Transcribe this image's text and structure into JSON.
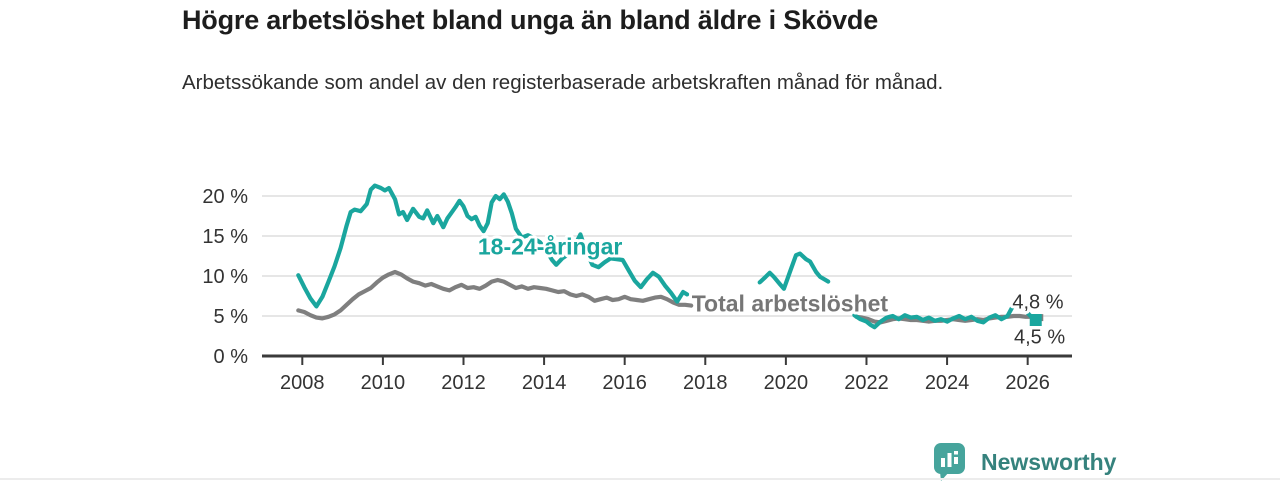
{
  "chart_data": {
    "type": "line",
    "title": "Högre arbetslöshet bland unga än bland äldre i Skövde",
    "subtitle": "Arbetssökande som andel av den registerbaserade arbetskraften månad för månad.",
    "unit": "%",
    "grid": "horizontal",
    "legend_position": "inline-labels",
    "x_range": [
      2007.0,
      2027.1
    ],
    "y_range": [
      0,
      22.5
    ],
    "x_ticks": [
      2008,
      2010,
      2012,
      2014,
      2016,
      2018,
      2020,
      2022,
      2024,
      2026
    ],
    "y_ticks": [
      {
        "value": 20,
        "label": "20 %"
      },
      {
        "value": 15,
        "label": "15 %"
      },
      {
        "value": 10,
        "label": "10 %"
      },
      {
        "value": 5,
        "label": "5 %"
      },
      {
        "value": 0,
        "label": "0 %"
      }
    ],
    "series": [
      {
        "name": "Total arbetslöshet",
        "color": "#7f7f7f",
        "last_value_label": "4,8 %",
        "last_value": 4.8,
        "end_marker": {
          "x": 2026.3,
          "y": 4.8,
          "size": 7
        },
        "segments": [
          [
            [
              2007.9,
              5.7
            ],
            [
              2008.05,
              5.5
            ],
            [
              2008.2,
              5.1
            ],
            [
              2008.35,
              4.8
            ],
            [
              2008.5,
              4.7
            ],
            [
              2008.65,
              4.9
            ],
            [
              2008.8,
              5.2
            ],
            [
              2008.95,
              5.7
            ],
            [
              2009.1,
              6.4
            ],
            [
              2009.25,
              7.1
            ],
            [
              2009.4,
              7.7
            ],
            [
              2009.55,
              8.1
            ],
            [
              2009.7,
              8.5
            ],
            [
              2009.85,
              9.2
            ],
            [
              2010.0,
              9.8
            ],
            [
              2010.15,
              10.2
            ],
            [
              2010.3,
              10.5
            ],
            [
              2010.45,
              10.2
            ],
            [
              2010.6,
              9.7
            ],
            [
              2010.75,
              9.3
            ],
            [
              2010.9,
              9.1
            ],
            [
              2011.05,
              8.8
            ],
            [
              2011.2,
              9.0
            ],
            [
              2011.35,
              8.7
            ],
            [
              2011.5,
              8.4
            ],
            [
              2011.65,
              8.2
            ],
            [
              2011.8,
              8.6
            ],
            [
              2011.95,
              8.9
            ],
            [
              2012.1,
              8.5
            ],
            [
              2012.25,
              8.6
            ],
            [
              2012.4,
              8.4
            ],
            [
              2012.55,
              8.8
            ],
            [
              2012.7,
              9.3
            ],
            [
              2012.85,
              9.5
            ],
            [
              2013.0,
              9.3
            ],
            [
              2013.15,
              8.9
            ],
            [
              2013.3,
              8.5
            ],
            [
              2013.45,
              8.7
            ],
            [
              2013.6,
              8.4
            ],
            [
              2013.75,
              8.6
            ],
            [
              2013.9,
              8.5
            ],
            [
              2014.05,
              8.4
            ],
            [
              2014.2,
              8.2
            ],
            [
              2014.35,
              8.0
            ],
            [
              2014.5,
              8.1
            ],
            [
              2014.65,
              7.7
            ],
            [
              2014.8,
              7.5
            ],
            [
              2014.95,
              7.7
            ],
            [
              2015.1,
              7.4
            ],
            [
              2015.25,
              6.9
            ],
            [
              2015.4,
              7.1
            ],
            [
              2015.55,
              7.3
            ],
            [
              2015.7,
              7.0
            ],
            [
              2015.85,
              7.1
            ],
            [
              2016.0,
              7.4
            ],
            [
              2016.15,
              7.1
            ],
            [
              2016.3,
              7.0
            ],
            [
              2016.45,
              6.9
            ],
            [
              2016.6,
              7.1
            ],
            [
              2016.75,
              7.3
            ],
            [
              2016.9,
              7.4
            ],
            [
              2017.05,
              7.1
            ],
            [
              2017.2,
              6.7
            ],
            [
              2017.35,
              6.4
            ],
            [
              2017.5,
              6.4
            ],
            [
              2017.65,
              6.3
            ]
          ],
          [
            [
              2021.75,
              4.9
            ],
            [
              2021.9,
              4.8
            ],
            [
              2022.05,
              4.6
            ],
            [
              2022.2,
              4.3
            ],
            [
              2022.35,
              4.2
            ],
            [
              2022.5,
              4.4
            ],
            [
              2022.65,
              4.6
            ],
            [
              2022.8,
              4.7
            ],
            [
              2022.95,
              4.6
            ],
            [
              2023.1,
              4.5
            ],
            [
              2023.25,
              4.5
            ],
            [
              2023.4,
              4.4
            ],
            [
              2023.55,
              4.3
            ],
            [
              2023.7,
              4.4
            ],
            [
              2023.85,
              4.4
            ],
            [
              2024.0,
              4.5
            ],
            [
              2024.15,
              4.6
            ],
            [
              2024.3,
              4.5
            ],
            [
              2024.45,
              4.4
            ],
            [
              2024.6,
              4.5
            ],
            [
              2024.75,
              4.6
            ],
            [
              2024.9,
              4.5
            ],
            [
              2025.05,
              4.7
            ],
            [
              2025.2,
              4.8
            ],
            [
              2025.35,
              4.9
            ],
            [
              2025.5,
              4.9
            ],
            [
              2025.65,
              5.0
            ],
            [
              2025.8,
              5.0
            ],
            [
              2025.95,
              4.9
            ],
            [
              2026.1,
              4.9
            ],
            [
              2026.3,
              4.8
            ]
          ]
        ]
      },
      {
        "name": "18-24-åringar",
        "color": "#1aa69e",
        "last_value_label": "4,5 %",
        "last_value": 4.5,
        "end_marker": {
          "x": 2026.2,
          "y": 4.5,
          "size": 12
        },
        "segments": [
          [
            [
              2007.9,
              10.1
            ],
            [
              2008.05,
              8.6
            ],
            [
              2008.2,
              7.2
            ],
            [
              2008.35,
              6.2
            ],
            [
              2008.5,
              7.4
            ],
            [
              2008.65,
              9.3
            ],
            [
              2008.8,
              11.2
            ],
            [
              2008.95,
              13.5
            ],
            [
              2009.1,
              16.3
            ],
            [
              2009.2,
              18.0
            ],
            [
              2009.3,
              18.3
            ],
            [
              2009.45,
              18.1
            ],
            [
              2009.6,
              19.0
            ],
            [
              2009.7,
              20.8
            ],
            [
              2009.8,
              21.3
            ],
            [
              2009.95,
              21.0
            ],
            [
              2010.05,
              20.7
            ],
            [
              2010.15,
              21.0
            ],
            [
              2010.3,
              19.6
            ],
            [
              2010.4,
              17.7
            ],
            [
              2010.5,
              18.0
            ],
            [
              2010.6,
              17.0
            ],
            [
              2010.75,
              18.4
            ],
            [
              2010.9,
              17.4
            ],
            [
              2011.0,
              17.2
            ],
            [
              2011.1,
              18.2
            ],
            [
              2011.25,
              16.6
            ],
            [
              2011.35,
              17.5
            ],
            [
              2011.5,
              16.1
            ],
            [
              2011.6,
              17.2
            ],
            [
              2011.7,
              17.9
            ],
            [
              2011.8,
              18.6
            ],
            [
              2011.9,
              19.4
            ],
            [
              2012.0,
              18.7
            ],
            [
              2012.1,
              17.5
            ],
            [
              2012.2,
              17.1
            ],
            [
              2012.3,
              17.4
            ],
            [
              2012.4,
              16.3
            ],
            [
              2012.5,
              15.6
            ],
            [
              2012.6,
              16.6
            ],
            [
              2012.7,
              19.2
            ],
            [
              2012.8,
              20.0
            ],
            [
              2012.9,
              19.6
            ],
            [
              2013.0,
              20.2
            ],
            [
              2013.1,
              19.3
            ],
            [
              2013.2,
              17.8
            ],
            [
              2013.3,
              15.9
            ],
            [
              2013.45,
              14.8
            ],
            [
              2013.6,
              15.1
            ],
            [
              2013.75,
              14.7
            ],
            [
              2013.9,
              14.2
            ],
            [
              2014.05,
              13.2
            ],
            [
              2014.2,
              12.0
            ],
            [
              2014.3,
              11.4
            ],
            [
              2014.45,
              12.2
            ],
            [
              2014.6,
              12.7
            ],
            [
              2014.75,
              13.7
            ],
            [
              2014.9,
              15.2
            ],
            [
              2015.05,
              13.0
            ],
            [
              2015.2,
              11.4
            ],
            [
              2015.35,
              11.1
            ],
            [
              2015.5,
              11.7
            ],
            [
              2015.65,
              12.2
            ],
            [
              2015.8,
              12.1
            ],
            [
              2015.95,
              12.0
            ],
            [
              2016.1,
              10.7
            ],
            [
              2016.25,
              9.4
            ],
            [
              2016.4,
              8.6
            ],
            [
              2016.55,
              9.6
            ],
            [
              2016.7,
              10.4
            ],
            [
              2016.85,
              9.9
            ],
            [
              2017.0,
              8.8
            ],
            [
              2017.15,
              7.9
            ],
            [
              2017.3,
              6.8
            ],
            [
              2017.45,
              8.0
            ],
            [
              2017.55,
              7.7
            ]
          ],
          [
            [
              2019.35,
              9.2
            ],
            [
              2019.5,
              9.9
            ],
            [
              2019.6,
              10.4
            ],
            [
              2019.7,
              9.9
            ],
            [
              2019.85,
              9.0
            ],
            [
              2019.95,
              8.4
            ],
            [
              2020.1,
              10.5
            ],
            [
              2020.25,
              12.6
            ],
            [
              2020.35,
              12.8
            ],
            [
              2020.5,
              12.1
            ],
            [
              2020.6,
              11.8
            ],
            [
              2020.75,
              10.5
            ],
            [
              2020.85,
              9.9
            ],
            [
              2020.95,
              9.6
            ],
            [
              2021.05,
              9.3
            ]
          ],
          [
            [
              2021.7,
              5.1
            ],
            [
              2021.85,
              4.6
            ],
            [
              2022.0,
              4.3
            ],
            [
              2022.1,
              3.9
            ],
            [
              2022.2,
              3.6
            ],
            [
              2022.35,
              4.3
            ],
            [
              2022.5,
              4.8
            ],
            [
              2022.65,
              5.0
            ],
            [
              2022.8,
              4.6
            ],
            [
              2022.95,
              5.1
            ],
            [
              2023.1,
              4.8
            ],
            [
              2023.25,
              4.9
            ],
            [
              2023.4,
              4.5
            ],
            [
              2023.55,
              4.8
            ],
            [
              2023.7,
              4.4
            ],
            [
              2023.85,
              4.6
            ],
            [
              2024.0,
              4.3
            ],
            [
              2024.15,
              4.7
            ],
            [
              2024.3,
              5.0
            ],
            [
              2024.45,
              4.6
            ],
            [
              2024.6,
              4.9
            ],
            [
              2024.75,
              4.4
            ],
            [
              2024.9,
              4.2
            ],
            [
              2025.05,
              4.8
            ],
            [
              2025.2,
              5.1
            ],
            [
              2025.35,
              4.6
            ],
            [
              2025.5,
              5.0
            ],
            [
              2025.65,
              6.4
            ],
            [
              2025.75,
              7.0
            ],
            [
              2025.9,
              6.0
            ],
            [
              2026.05,
              5.1
            ],
            [
              2026.2,
              4.5
            ]
          ]
        ]
      }
    ],
    "annotations": [
      {
        "text": "18-24-åringar",
        "x": 2014.15,
        "y": 13.7,
        "anchor": "middle",
        "size": 23,
        "weight": "bold",
        "color": "#1aa69e"
      },
      {
        "text": "Total arbetslöshet",
        "x": 2020.1,
        "y": 6.6,
        "anchor": "middle",
        "size": 23,
        "weight": "bold",
        "color": "#767676"
      },
      {
        "text": "4,8 %",
        "x": 2025.62,
        "y": 6.8,
        "anchor": "start",
        "size": 20,
        "weight": "normal",
        "color": "#333333"
      },
      {
        "text": "4,5 %",
        "x": 2025.66,
        "y": 2.45,
        "anchor": "start",
        "size": 20,
        "weight": "normal",
        "color": "#333333"
      }
    ],
    "colors": {
      "axis": "#3a3a3a",
      "gridline": "#d8d8d8",
      "tick_text": "#333333"
    }
  },
  "branding": {
    "name": "Newsworthy",
    "logo_icon": "bar-chart-speech-bubble",
    "logo_color": "#46a49c",
    "text_color": "#35827d"
  }
}
